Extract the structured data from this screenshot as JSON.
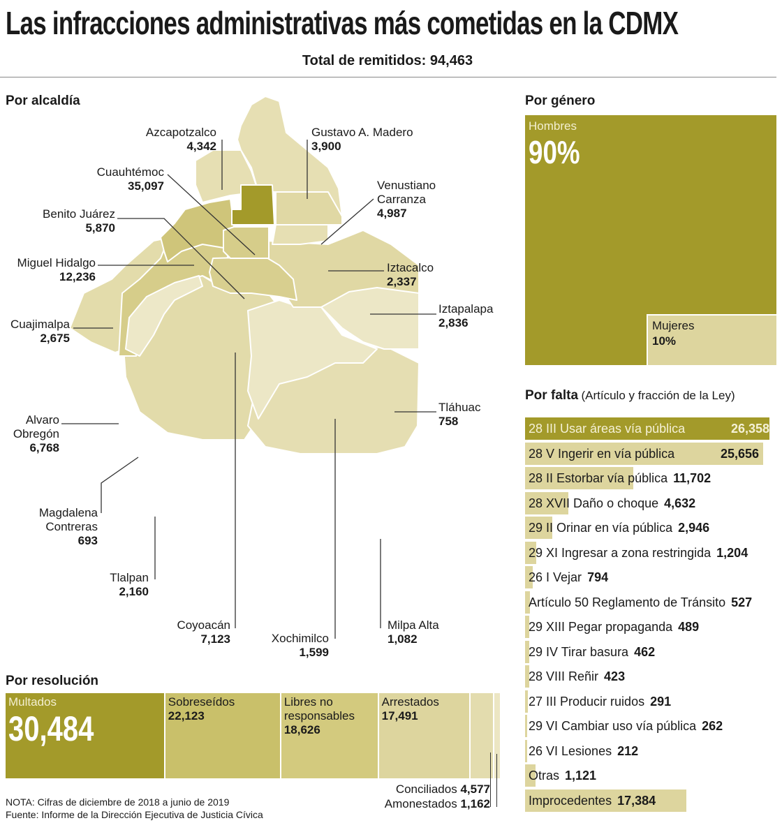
{
  "title": "Las infracciones administrativas más cometidas en la CDMX",
  "total_label": "Total de remitidos: 94,463",
  "colors": {
    "dark": "#a39a2a",
    "medium": "#c9c06a",
    "light": "#ddd59e",
    "lightest": "#ece6c3"
  },
  "map": {
    "heading": "Por alcaldía",
    "alcaldias": [
      {
        "name": "Azcapotzalco",
        "value": "4,342"
      },
      {
        "name": "Gustavo A. Madero",
        "value": "3,900"
      },
      {
        "name": "Cuauhtémoc",
        "value": "35,097"
      },
      {
        "name": "Venustiano Carranza",
        "value": "4,987"
      },
      {
        "name": "Benito Juárez",
        "value": "5,870"
      },
      {
        "name": "Miguel Hidalgo",
        "value": "12,236"
      },
      {
        "name": "Iztacalco",
        "value": "2,337"
      },
      {
        "name": "Iztapalapa",
        "value": "2,836"
      },
      {
        "name": "Cuajimalpa",
        "value": "2,675"
      },
      {
        "name": "Tláhuac",
        "value": "758"
      },
      {
        "name": "Alvaro Obregón",
        "value": "6,768"
      },
      {
        "name": "Magdalena Contreras",
        "value": "693"
      },
      {
        "name": "Tlalpan",
        "value": "2,160"
      },
      {
        "name": "Coyoacán",
        "value": "7,123"
      },
      {
        "name": "Xochimilco",
        "value": "1,599"
      },
      {
        "name": "Milpa Alta",
        "value": "1,082"
      }
    ]
  },
  "chart_data": [
    {
      "type": "bar",
      "title": "Por género",
      "layout": "treemap",
      "categories": [
        "Hombres",
        "Mujeres"
      ],
      "values": [
        90,
        10
      ],
      "labels": [
        "90%",
        "10%"
      ]
    },
    {
      "type": "bar",
      "title": "Por falta",
      "subtitle": "(Artículo y fracción de la Ley)",
      "orientation": "horizontal",
      "categories": [
        "28 III Usar áreas vía pública",
        "28 V Ingerir en vía pública",
        "28 II Estorbar vía pública",
        "28 XVII Daño o choque",
        "29 II Orinar en vía pública",
        "29 XI Ingresar a zona restringida",
        "26 I Vejar",
        "Artículo 50 Reglamento de Tránsito",
        "29 XIII Pegar propaganda",
        "29 IV Tirar basura",
        "28 VIII Reñir",
        "27 III Producir ruidos",
        "29 VI Cambiar uso vía pública",
        "26 VI Lesiones",
        "Otras",
        "Improcedentes"
      ],
      "values": [
        26358,
        25656,
        11702,
        4632,
        2946,
        1204,
        794,
        527,
        489,
        462,
        423,
        291,
        262,
        212,
        1121,
        17384
      ],
      "labels": [
        "26,358",
        "25,656",
        "11,702",
        "4,632",
        "2,946",
        "1,204",
        "794",
        "527",
        "489",
        "462",
        "423",
        "291",
        "262",
        "212",
        "1,121",
        "17,384"
      ]
    },
    {
      "type": "bar",
      "title": "Por resolución",
      "layout": "stacked-horizontal",
      "categories": [
        "Multados",
        "Sobreseídos",
        "Libres no responsables",
        "Arrestados",
        "Conciliados",
        "Amonestados"
      ],
      "values": [
        30484,
        22123,
        18626,
        17491,
        4577,
        1162
      ],
      "labels": [
        "30,484",
        "22,123",
        "18,626",
        "17,491",
        "4,577",
        "1,162"
      ]
    }
  ],
  "notes": {
    "nota": "NOTA: Cifras de diciembre de 2018 a junio de 2019",
    "fuente": "Fuente: Informe de la Dirección Ejecutiva de Justicia Cívica"
  }
}
